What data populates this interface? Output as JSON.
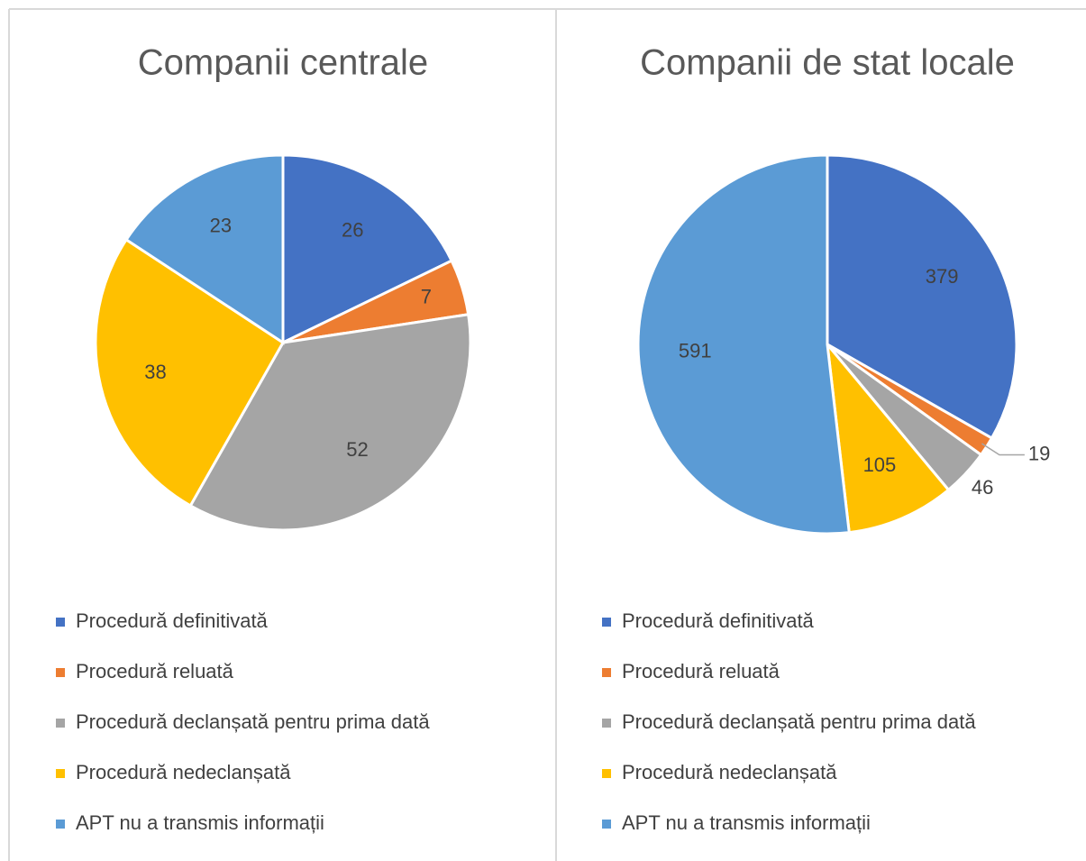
{
  "chart_data": [
    {
      "type": "pie",
      "title": "Companii centrale",
      "categories": [
        "Procedură definitivată",
        "Procedură reluată",
        "Procedură declanșată pentru prima dată",
        "Procedură nedeclanșată",
        "APT nu a transmis informații"
      ],
      "values": [
        26,
        7,
        52,
        38,
        23
      ],
      "colors": [
        "#4472c4",
        "#ed7d31",
        "#a5a5a5",
        "#ffc000",
        "#5b9bd5"
      ],
      "legend": "bottom"
    },
    {
      "type": "pie",
      "title": "Companii de stat locale",
      "categories": [
        "Procedură definitivată",
        "Procedură reluată",
        "Procedură declanșată pentru prima dată",
        "Procedură nedeclanșată",
        "APT nu a transmis informații"
      ],
      "values": [
        379,
        19,
        46,
        105,
        591
      ],
      "colors": [
        "#4472c4",
        "#ed7d31",
        "#a5a5a5",
        "#ffc000",
        "#5b9bd5"
      ],
      "legend": "bottom"
    }
  ]
}
